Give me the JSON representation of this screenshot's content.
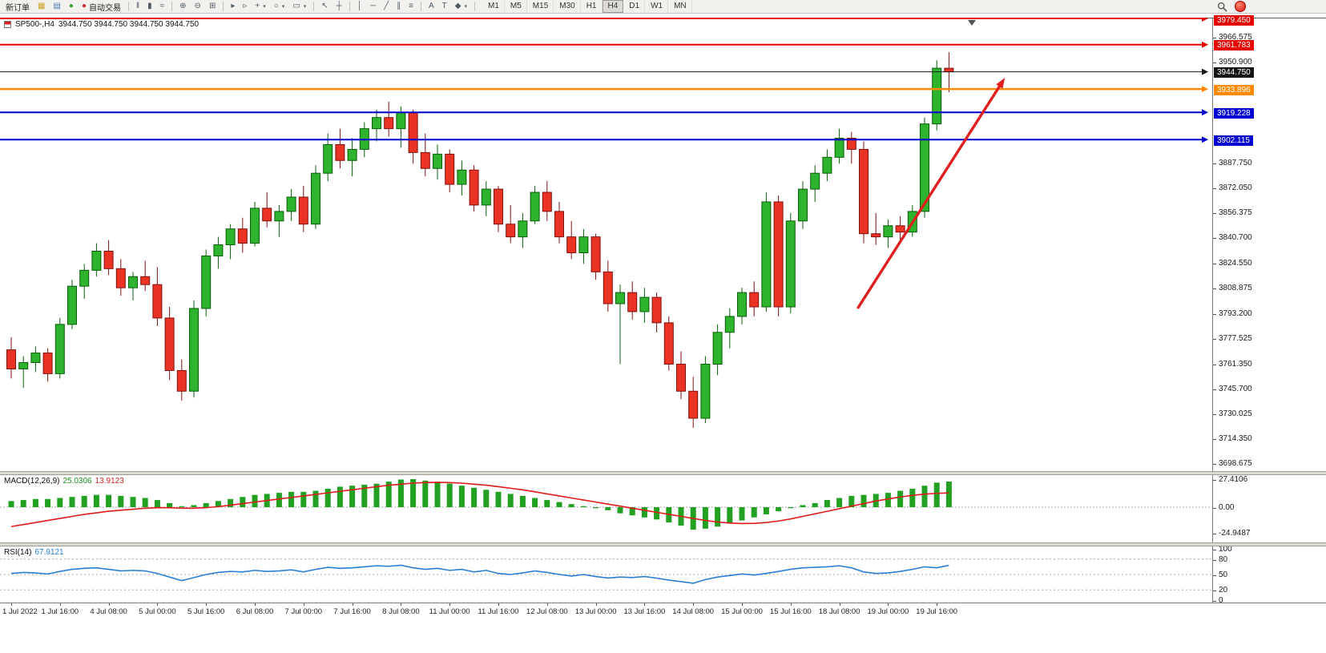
{
  "toolbar": {
    "items": [
      {
        "name": "new-order-button",
        "label": "新订单"
      },
      {
        "name": "new-chart-icon",
        "glyph": "▦",
        "color": "#c9a227"
      },
      {
        "name": "profiles-icon",
        "glyph": "▤",
        "color": "#4a7ab5"
      },
      {
        "name": "refresh-icon",
        "glyph": "●",
        "color": "#3aa03a"
      },
      {
        "name": "auto-trading-button",
        "label": "自动交易",
        "glyph": "●",
        "color": "#d03030"
      },
      {
        "name": "sep"
      },
      {
        "name": "bar-chart-icon",
        "glyph": "‖"
      },
      {
        "name": "candlestick-chart-icon",
        "glyph": "▮"
      },
      {
        "name": "line-chart-icon",
        "glyph": "≈"
      },
      {
        "name": "sep"
      },
      {
        "name": "zoom-in-icon",
        "glyph": "⊕"
      },
      {
        "name": "zoom-out-icon",
        "glyph": "⊖"
      },
      {
        "name": "tile-windows-icon",
        "glyph": "⊞"
      },
      {
        "name": "sep"
      },
      {
        "name": "auto-scroll-icon",
        "glyph": "▸"
      },
      {
        "name": "chart-shift-icon",
        "glyph": "▹"
      },
      {
        "name": "indicators-icon",
        "glyph": "+",
        "caret": true
      },
      {
        "name": "periods-icon",
        "glyph": "○",
        "caret": true
      },
      {
        "name": "templates-icon",
        "glyph": "▭",
        "caret": true
      },
      {
        "name": "sep"
      },
      {
        "name": "cursor-icon",
        "glyph": "↖"
      },
      {
        "name": "crosshair-icon",
        "glyph": "┼"
      },
      {
        "name": "sep"
      },
      {
        "name": "vertical-line-icon",
        "glyph": "│"
      },
      {
        "name": "horizontal-line-icon",
        "glyph": "─"
      },
      {
        "name": "trendline-icon",
        "glyph": "╱"
      },
      {
        "name": "channel-icon",
        "glyph": "∥"
      },
      {
        "name": "fibonacci-icon",
        "glyph": "≡"
      },
      {
        "name": "sep"
      },
      {
        "name": "text-icon",
        "glyph": "A"
      },
      {
        "name": "text-label-icon",
        "glyph": "T"
      },
      {
        "name": "shapes-icon",
        "glyph": "◆",
        "caret": true
      },
      {
        "name": "sep"
      }
    ],
    "timeframes": [
      "M1",
      "M5",
      "M15",
      "M30",
      "H1",
      "H4",
      "D1",
      "W1",
      "MN"
    ],
    "active_timeframe": "H4"
  },
  "chart": {
    "symbol_period": "SP500-,H4",
    "ohlc_line": "3944.750 3944.750 3944.750 3944.750"
  },
  "levels": [
    {
      "label": "3979.450",
      "price": 3979.45,
      "color": "#e60000",
      "width": 2
    },
    {
      "label": "3961.783",
      "price": 3961.783,
      "color": "#e60000",
      "width": 2
    },
    {
      "label": "3944.750",
      "price": 3944.75,
      "color": "#151515",
      "width": 1,
      "role": "current-price"
    },
    {
      "label": "3933.896",
      "price": 3933.896,
      "color": "#ff8a00",
      "width": 2.5
    },
    {
      "label": "3919.228",
      "price": 3919.228,
      "color": "#0000d0",
      "width": 2
    },
    {
      "label": "3902.115",
      "price": 3902.115,
      "color": "#0000d0",
      "width": 2
    }
  ],
  "price_axis": {
    "ticks": [
      "3966.575",
      "3950.900",
      "3887.750",
      "3872.050",
      "3856.375",
      "3840.700",
      "3824.550",
      "3808.875",
      "3793.200",
      "3777.525",
      "3761.350",
      "3745.700",
      "3730.025",
      "3714.350",
      "3698.675"
    ]
  },
  "macd": {
    "label": "MACD(12,26,9)",
    "value_main": "25.0306",
    "value_signal": "13.9123",
    "axis": [
      "27.4106",
      "0.00",
      "-24.9487"
    ]
  },
  "rsi": {
    "label": "RSI(14)",
    "value": "67.9121",
    "axis": [
      "100",
      "80",
      "50",
      "20",
      "0"
    ]
  },
  "time_axis": [
    "1 Jul 2022",
    "1 Jul 16:00",
    "4 Jul 08:00",
    "5 Jul 00:00",
    "5 Jul 16:00",
    "6 Jul 08:00",
    "7 Jul 00:00",
    "7 Jul 16:00",
    "8 Jul 08:00",
    "11 Jul 00:00",
    "11 Jul 16:00",
    "12 Jul 08:00",
    "13 Jul 00:00",
    "13 Jul 16:00",
    "14 Jul 08:00",
    "15 Jul 00:00",
    "15 Jul 16:00",
    "18 Jul 08:00",
    "19 Jul 00:00",
    "19 Jul 16:00"
  ],
  "annotation_arrow": {
    "color": "#e01f1f",
    "from": {
      "bar": 69.5,
      "price": 3796
    },
    "to": {
      "bar": 81.6,
      "price": 3941
    }
  },
  "chart_data": [
    {
      "type": "candlestick",
      "symbol": "SP500-",
      "timeframe": "H4",
      "title": "SP500-,H4 3944.750 3944.750 3944.750 3944.750",
      "ylim": [
        3698.675,
        3979.45
      ],
      "grid": false,
      "time_labels": [
        "1 Jul 2022",
        "1 Jul 16:00",
        "4 Jul 08:00",
        "5 Jul 00:00",
        "5 Jul 16:00",
        "6 Jul 08:00",
        "7 Jul 00:00",
        "7 Jul 16:00",
        "8 Jul 08:00",
        "11 Jul 00:00",
        "11 Jul 16:00",
        "12 Jul 08:00",
        "13 Jul 00:00",
        "13 Jul 16:00",
        "14 Jul 08:00",
        "15 Jul 00:00",
        "15 Jul 16:00",
        "18 Jul 08:00",
        "19 Jul 00:00",
        "19 Jul 16:00"
      ],
      "bars_per_label": 4,
      "colors": {
        "up_fill": "#2db32d",
        "up_stroke": "#0b5d0b",
        "down_fill": "#ea3323",
        "down_stroke": "#801010"
      },
      "ohlc": [
        [
          3770,
          3778,
          3752,
          3758
        ],
        [
          3758,
          3766,
          3746,
          3762
        ],
        [
          3762,
          3772,
          3756,
          3768
        ],
        [
          3768,
          3771,
          3750,
          3755
        ],
        [
          3755,
          3790,
          3752,
          3786
        ],
        [
          3786,
          3814,
          3783,
          3810
        ],
        [
          3810,
          3824,
          3802,
          3820
        ],
        [
          3820,
          3837,
          3816,
          3832
        ],
        [
          3832,
          3839,
          3817,
          3821
        ],
        [
          3821,
          3827,
          3804,
          3809
        ],
        [
          3809,
          3819,
          3801,
          3816
        ],
        [
          3816,
          3826,
          3807,
          3811
        ],
        [
          3811,
          3822,
          3785,
          3790
        ],
        [
          3790,
          3797,
          3751,
          3757
        ],
        [
          3757,
          3764,
          3738,
          3744
        ],
        [
          3744,
          3801,
          3740,
          3796
        ],
        [
          3796,
          3833,
          3791,
          3829
        ],
        [
          3829,
          3841,
          3821,
          3836
        ],
        [
          3836,
          3849,
          3827,
          3846
        ],
        [
          3846,
          3853,
          3831,
          3837
        ],
        [
          3837,
          3863,
          3835,
          3859
        ],
        [
          3859,
          3869,
          3847,
          3851
        ],
        [
          3851,
          3861,
          3841,
          3857
        ],
        [
          3857,
          3871,
          3851,
          3866
        ],
        [
          3866,
          3873,
          3844,
          3849
        ],
        [
          3849,
          3886,
          3846,
          3881
        ],
        [
          3881,
          3906,
          3876,
          3899
        ],
        [
          3899,
          3909,
          3884,
          3889
        ],
        [
          3889,
          3903,
          3879,
          3896
        ],
        [
          3896,
          3913,
          3891,
          3909
        ],
        [
          3909,
          3921,
          3901,
          3916
        ],
        [
          3916,
          3926,
          3904,
          3909
        ],
        [
          3909,
          3923,
          3897,
          3919
        ],
        [
          3919,
          3921,
          3887,
          3894
        ],
        [
          3894,
          3906,
          3879,
          3884
        ],
        [
          3884,
          3899,
          3877,
          3893
        ],
        [
          3893,
          3896,
          3869,
          3874
        ],
        [
          3874,
          3889,
          3867,
          3883
        ],
        [
          3883,
          3886,
          3857,
          3861
        ],
        [
          3861,
          3876,
          3854,
          3871
        ],
        [
          3871,
          3873,
          3844,
          3849
        ],
        [
          3849,
          3861,
          3837,
          3841
        ],
        [
          3841,
          3856,
          3834,
          3851
        ],
        [
          3851,
          3873,
          3849,
          3869
        ],
        [
          3869,
          3876,
          3851,
          3857
        ],
        [
          3857,
          3863,
          3837,
          3841
        ],
        [
          3841,
          3851,
          3827,
          3831
        ],
        [
          3831,
          3846,
          3824,
          3841
        ],
        [
          3841,
          3843,
          3814,
          3819
        ],
        [
          3819,
          3826,
          3794,
          3799
        ],
        [
          3799,
          3811,
          3761,
          3806
        ],
        [
          3806,
          3813,
          3789,
          3794
        ],
        [
          3794,
          3809,
          3787,
          3803
        ],
        [
          3803,
          3806,
          3781,
          3787
        ],
        [
          3787,
          3791,
          3757,
          3761
        ],
        [
          3761,
          3769,
          3739,
          3744
        ],
        [
          3744,
          3753,
          3721,
          3727
        ],
        [
          3727,
          3766,
          3724,
          3761
        ],
        [
          3761,
          3786,
          3754,
          3781
        ],
        [
          3781,
          3796,
          3771,
          3791
        ],
        [
          3791,
          3809,
          3786,
          3806
        ],
        [
          3806,
          3813,
          3791,
          3797
        ],
        [
          3797,
          3869,
          3794,
          3863
        ],
        [
          3863,
          3867,
          3791,
          3797
        ],
        [
          3797,
          3856,
          3793,
          3851
        ],
        [
          3851,
          3876,
          3846,
          3871
        ],
        [
          3871,
          3886,
          3863,
          3881
        ],
        [
          3881,
          3896,
          3876,
          3891
        ],
        [
          3891,
          3909,
          3887,
          3903
        ],
        [
          3903,
          3907,
          3887,
          3896
        ],
        [
          3896,
          3901,
          3837,
          3843
        ],
        [
          3843,
          3856,
          3836,
          3841
        ],
        [
          3841,
          3852,
          3834,
          3848
        ],
        [
          3848,
          3854,
          3839,
          3844
        ],
        [
          3844,
          3861,
          3841,
          3857
        ],
        [
          3857,
          3916,
          3853,
          3912
        ],
        [
          3912,
          3952,
          3908,
          3947
        ],
        [
          3947,
          3957,
          3932,
          3944.75
        ]
      ]
    },
    {
      "type": "bar",
      "name": "MACD(12,26,9)",
      "ylim": [
        -24.9487,
        27.4106
      ],
      "color": "#22a022",
      "values": [
        6,
        7,
        8,
        8,
        9,
        10,
        11,
        12,
        12,
        11,
        10,
        9,
        7,
        4,
        1,
        2,
        4,
        6,
        8,
        10,
        12,
        13,
        14,
        15,
        15,
        16,
        18,
        20,
        21,
        22,
        23,
        25,
        27,
        27.4,
        26,
        25,
        23,
        21,
        19,
        17,
        15,
        13,
        11,
        9,
        7,
        5,
        3,
        1,
        -1,
        -3,
        -6,
        -8,
        -10,
        -12,
        -15,
        -18,
        -22,
        -21,
        -19,
        -16,
        -13,
        -10,
        -7,
        -4,
        -1,
        2,
        4,
        7,
        9,
        11,
        12,
        13,
        14,
        16,
        18,
        21,
        24,
        25.03
      ],
      "series": [
        {
          "name": "signal",
          "color": "#e01b1b",
          "values": [
            -19,
            -17,
            -15,
            -13,
            -11,
            -9,
            -7,
            -5.5,
            -4,
            -3,
            -2,
            -1,
            -0.5,
            -0.5,
            -1,
            -1,
            -0.5,
            0.5,
            2,
            3.5,
            5,
            6.5,
            8,
            9.5,
            11,
            12.5,
            14,
            15.5,
            17,
            18.5,
            20,
            21.5,
            22.5,
            23.5,
            24,
            24.2,
            24,
            23.5,
            22.5,
            21.5,
            20,
            18.5,
            17,
            15,
            13,
            11,
            9,
            7,
            5,
            3,
            1,
            -1,
            -3,
            -5,
            -7,
            -9,
            -11,
            -13,
            -14.5,
            -15.5,
            -16,
            -15.8,
            -15,
            -13.5,
            -11.5,
            -9,
            -6.5,
            -4,
            -1.5,
            1,
            3.5,
            6,
            8,
            10,
            11.5,
            12.8,
            13.5,
            13.91
          ]
        }
      ]
    },
    {
      "type": "line",
      "name": "RSI(14)",
      "ylim": [
        0,
        100
      ],
      "color": "#2a7fd4",
      "levels": [
        80,
        50,
        20
      ],
      "values": [
        52,
        54,
        53,
        51,
        56,
        60,
        62,
        63,
        60,
        57,
        58,
        57,
        52,
        45,
        38,
        44,
        50,
        54,
        56,
        55,
        58,
        56,
        57,
        59,
        55,
        60,
        64,
        62,
        63,
        65,
        67,
        66,
        68,
        63,
        60,
        62,
        58,
        60,
        55,
        58,
        52,
        50,
        53,
        57,
        54,
        50,
        47,
        50,
        46,
        43,
        45,
        44,
        46,
        43,
        39,
        36,
        33,
        40,
        45,
        48,
        51,
        49,
        52,
        56,
        60,
        63,
        64,
        65,
        67,
        63,
        55,
        52,
        53,
        56,
        60,
        65,
        63,
        67.91
      ]
    }
  ]
}
